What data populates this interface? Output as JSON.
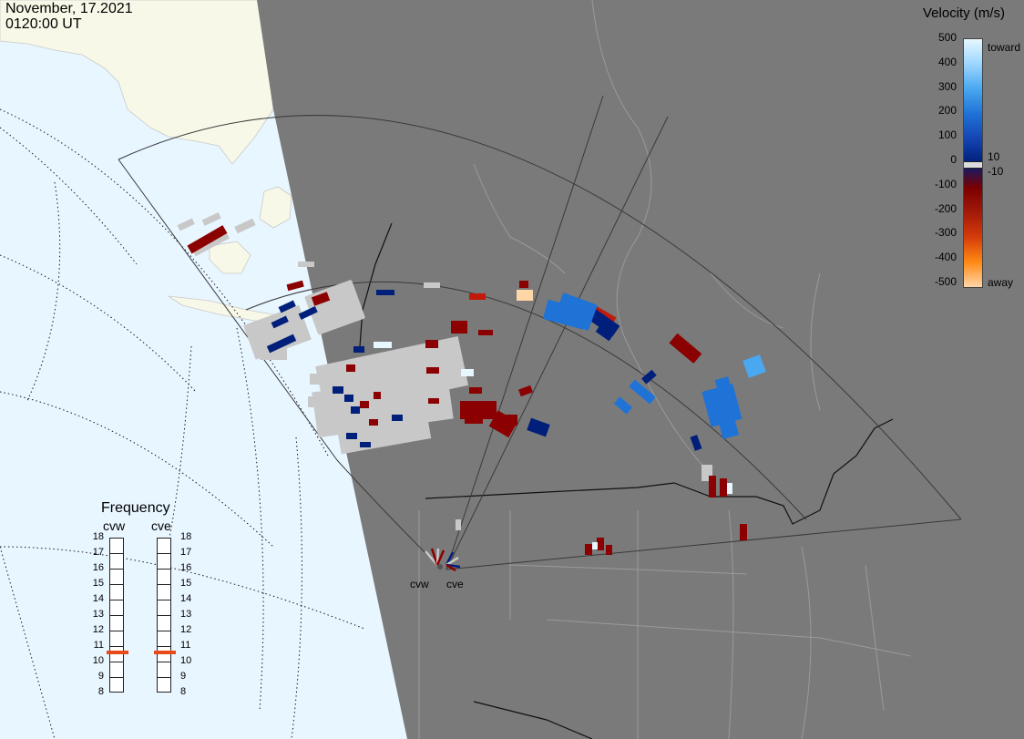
{
  "header": {
    "date": "November, 17.2021",
    "time": "0120:00 UT"
  },
  "colorbar": {
    "title": "Velocity (m/s)",
    "ticks": [
      "500",
      "400",
      "300",
      "200",
      "100",
      "0",
      "-100",
      "-200",
      "-300",
      "-400",
      "-500"
    ],
    "label_toward": "toward",
    "label_away": "away",
    "label_pos_small": "10",
    "label_neg_small": "-10",
    "colors": [
      "#e6f7ff",
      "#9dd6ff",
      "#4aa8f0",
      "#1f73d6",
      "#1446b3",
      "#001f7a",
      "#7a0000",
      "#a31a0a",
      "#d63c0a",
      "#ff8a14",
      "#ffd6a8"
    ]
  },
  "frequency_panel": {
    "title": "Frequency",
    "radars": [
      "cvw",
      "cve"
    ],
    "scale": [
      "18",
      "17",
      "16",
      "15",
      "14",
      "13",
      "12",
      "11",
      "10",
      "9",
      "8"
    ],
    "cvw_frequency": 10.6,
    "cve_frequency": 10.6,
    "marker_color": "#e84a1a"
  },
  "radar_sites": [
    "cvw",
    "cve"
  ],
  "map_colors": {
    "ocean": "#e8f6ff",
    "land_day": "#f8f8e8",
    "night": "#7a7a7a",
    "ground_scatter": "#c8c8c8"
  }
}
